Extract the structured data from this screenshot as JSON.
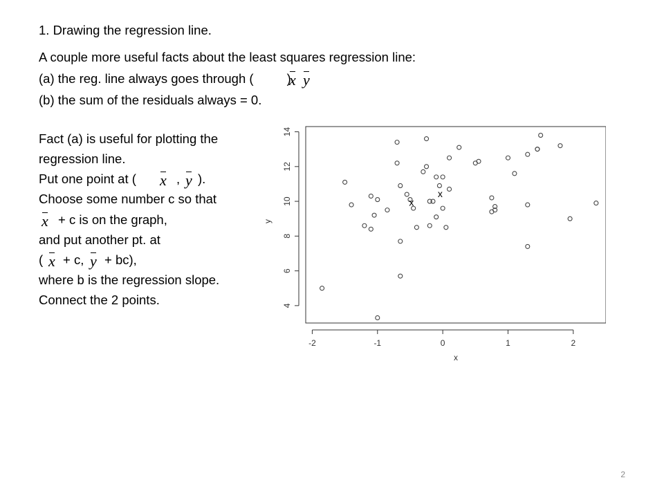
{
  "slide": {
    "title": "1. Drawing the regression line.",
    "intro": "A couple more useful facts about the least squares regression line:",
    "fact_a_start": "(a) the reg. line always goes through (",
    "fact_a_end": ").",
    "fact_b": "(b) the sum of the residuals always = 0.",
    "left_lines": {
      "l1": "Fact (a) is useful for plotting the",
      "l2": "regression line.",
      "l3_start": "Put one point at (",
      "l3_mid": ",",
      "l3_end": ").",
      "l4": "Choose some number c so that",
      "l5_end": "+ c is on the graph,",
      "l6": "and put another pt. at",
      "l7_start": "(",
      "l7_mid": "+ c,",
      "l7_end": "+ bc),",
      "l8": "where b is the regression slope.",
      "l9": "Connect the 2 points."
    },
    "math": {
      "x": "x",
      "y": "y"
    },
    "page_number": "2"
  },
  "chart_data": {
    "type": "scatter",
    "xlabel": "x",
    "ylabel": "y",
    "xlim": [
      -2.1,
      2.5
    ],
    "ylim": [
      3,
      14.3
    ],
    "xticks": [
      "-2",
      "-1",
      "0",
      "1",
      "2"
    ],
    "xtick_values": [
      -2,
      -1,
      0,
      1,
      2
    ],
    "yticks": [
      "4",
      "6",
      "8",
      "10",
      "12",
      "14"
    ],
    "ytick_values": [
      4,
      6,
      8,
      10,
      12,
      14
    ],
    "grid": false,
    "points": [
      [
        -1.85,
        5.0
      ],
      [
        -1.5,
        11.1
      ],
      [
        -1.4,
        9.8
      ],
      [
        -1.2,
        8.6
      ],
      [
        -1.1,
        10.3
      ],
      [
        -1.1,
        8.4
      ],
      [
        -1.05,
        9.2
      ],
      [
        -1.0,
        10.1
      ],
      [
        -1.0,
        3.3
      ],
      [
        -0.85,
        9.5
      ],
      [
        -0.7,
        13.4
      ],
      [
        -0.7,
        12.2
      ],
      [
        -0.65,
        10.9
      ],
      [
        -0.65,
        7.7
      ],
      [
        -0.65,
        5.7
      ],
      [
        -0.55,
        10.4
      ],
      [
        -0.5,
        10.1
      ],
      [
        -0.45,
        9.6
      ],
      [
        -0.4,
        8.5
      ],
      [
        -0.3,
        11.7
      ],
      [
        -0.25,
        13.6
      ],
      [
        -0.25,
        12.0
      ],
      [
        -0.2,
        8.6
      ],
      [
        -0.2,
        10.0
      ],
      [
        -0.15,
        10.0
      ],
      [
        -0.1,
        11.4
      ],
      [
        -0.05,
        10.9
      ],
      [
        0.0,
        11.4
      ],
      [
        0.0,
        9.6
      ],
      [
        0.05,
        8.5
      ],
      [
        0.1,
        10.7
      ],
      [
        0.1,
        12.5
      ],
      [
        -0.1,
        9.1
      ],
      [
        0.25,
        13.1
      ],
      [
        0.5,
        12.2
      ],
      [
        0.55,
        12.3
      ],
      [
        0.75,
        10.2
      ],
      [
        0.75,
        9.4
      ],
      [
        0.8,
        9.5
      ],
      [
        0.8,
        9.7
      ],
      [
        1.0,
        12.5
      ],
      [
        1.1,
        11.6
      ],
      [
        1.3,
        12.7
      ],
      [
        1.3,
        9.8
      ],
      [
        1.3,
        7.4
      ],
      [
        1.45,
        13.0
      ],
      [
        1.45,
        13.0
      ],
      [
        1.5,
        13.8
      ],
      [
        1.8,
        13.2
      ],
      [
        1.95,
        9.0
      ],
      [
        2.35,
        9.9
      ]
    ],
    "annotations": [
      {
        "text": "x",
        "x": -0.48,
        "y": 9.75
      },
      {
        "text": "x",
        "x": -0.04,
        "y": 10.25
      }
    ]
  }
}
